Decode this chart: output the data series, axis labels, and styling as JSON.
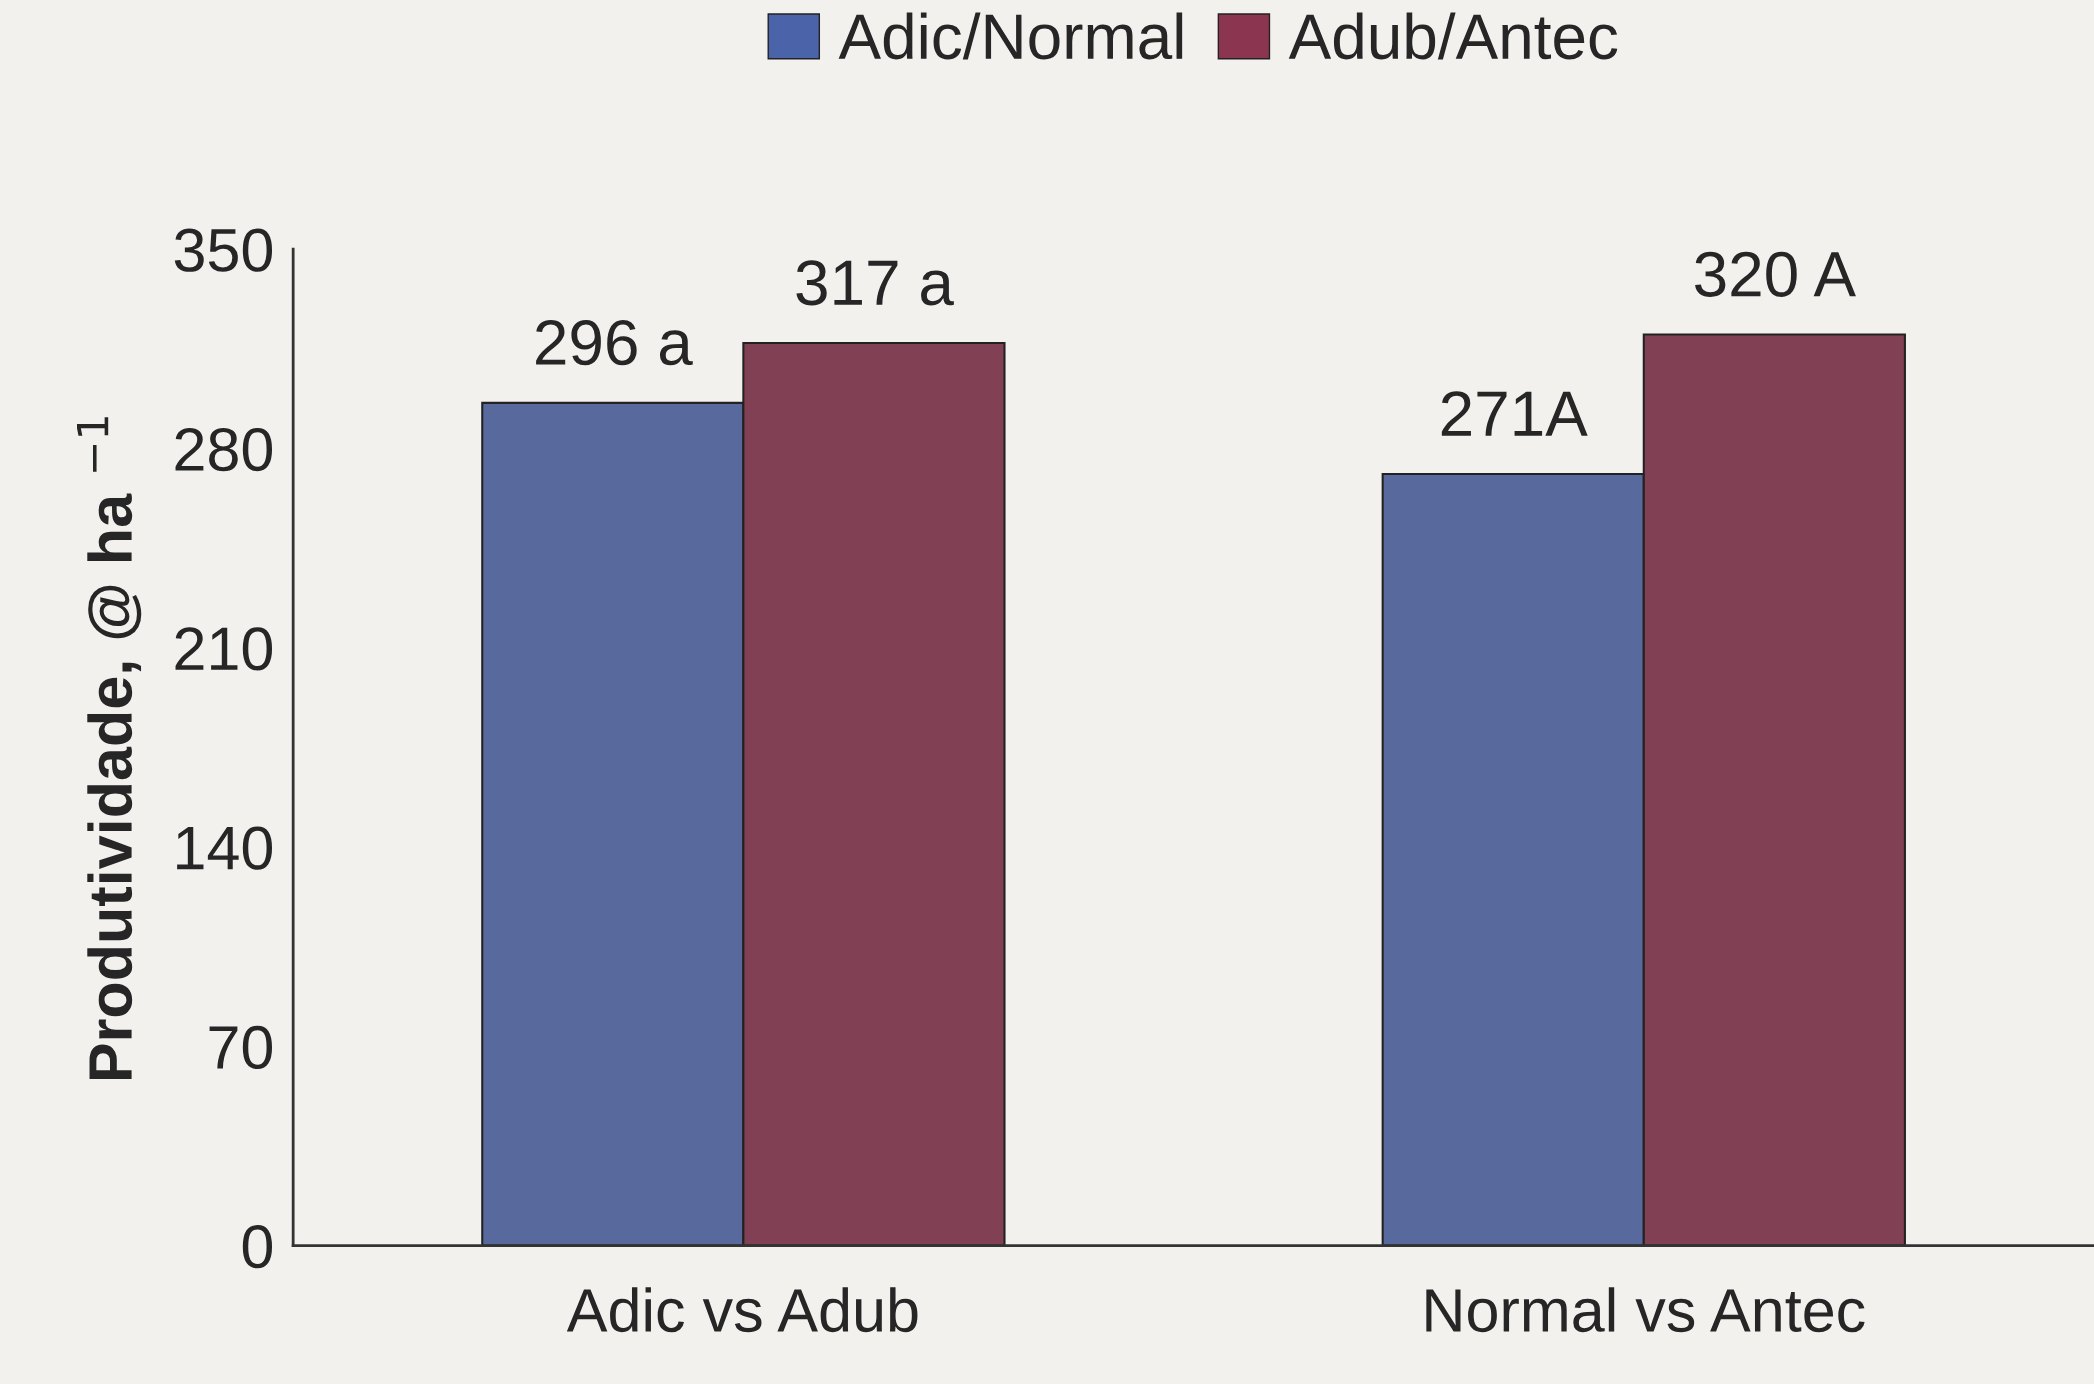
{
  "chart_data": {
    "type": "bar",
    "categories": [
      "Adic vs Adub",
      "Normal vs Antec"
    ],
    "series": [
      {
        "name": "Adic/Normal",
        "color": "#4b63a9",
        "values": [
          296,
          271
        ],
        "value_labels": [
          "296 a",
          "271A"
        ]
      },
      {
        "name": "Adub/Antec",
        "color": "#8c3550",
        "values": [
          317,
          320
        ],
        "value_labels": [
          "317 a",
          "320 A"
        ]
      }
    ],
    "ylabel": "Produtividade, @ ha $^{−1}$",
    "ylim": [
      0,
      350
    ],
    "yticks": [
      0,
      70,
      140,
      210,
      280,
      350
    ],
    "grid": false,
    "legend": "top"
  }
}
